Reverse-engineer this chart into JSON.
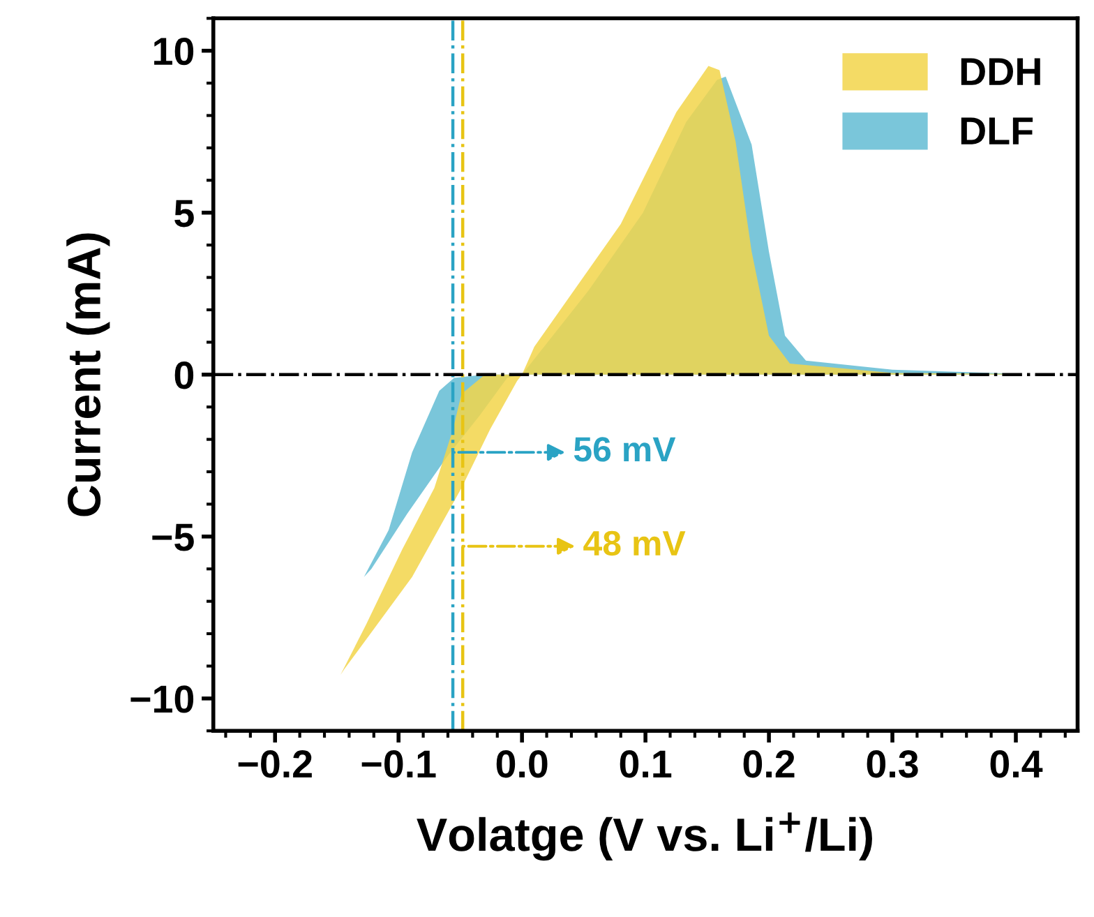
{
  "chart_data": {
    "type": "area",
    "xlabel": "Volatge (V vs. Li$^{+}$/Li)",
    "ylabel": "Current (mA)",
    "xlim": [
      -0.25,
      0.45
    ],
    "ylim": [
      -11,
      11
    ],
    "xticks": [
      {
        "value": -0.2,
        "label": "−0.2"
      },
      {
        "value": -0.1,
        "label": "−0.1"
      },
      "0.0",
      0.1,
      0.2,
      0.3,
      0.4
    ],
    "yticks": [
      {
        "value": -10,
        "label": "−10"
      },
      {
        "value": -5,
        "label": "−5"
      },
      0,
      5,
      10
    ],
    "legend": "top right",
    "grid": false,
    "series": [
      {
        "name": "DLF",
        "color": "#63bcd4",
        "x": [
          -0.128,
          -0.108,
          -0.089,
          -0.067,
          -0.055,
          -0.03,
          0.0,
          0.054,
          0.098,
          0.133,
          0.158,
          0.165,
          0.186,
          0.2,
          0.213,
          0.23,
          0.3,
          0.4,
          0.4,
          0.0,
          -0.012,
          -0.034,
          -0.06,
          -0.093,
          -0.122
        ],
        "values": [
          -6.25,
          -4.8,
          -2.4,
          -0.5,
          -0.1,
          0.0,
          0.0,
          2.6,
          5.0,
          7.8,
          9.1,
          9.2,
          7.1,
          3.8,
          1.2,
          0.43,
          0.15,
          0.03,
          0.0,
          0.0,
          -0.1,
          -1.25,
          -2.5,
          -4.3,
          -6.0
        ]
      },
      {
        "name": "DDH",
        "color": "#f2d54a",
        "x": [
          -0.147,
          -0.126,
          -0.097,
          -0.071,
          -0.056,
          -0.049,
          -0.03,
          0.0,
          0.01,
          0.08,
          0.125,
          0.151,
          0.16,
          0.173,
          0.186,
          0.2,
          0.217,
          0.3,
          0.4,
          0.4,
          0.0,
          -0.004,
          -0.026,
          -0.049,
          -0.089,
          -0.144
        ],
        "values": [
          -9.27,
          -7.7,
          -5.4,
          -3.5,
          -1.7,
          -0.6,
          0.0,
          0.0,
          0.86,
          4.65,
          8.1,
          9.53,
          9.4,
          7.2,
          3.8,
          1.2,
          0.34,
          0.05,
          0.02,
          0.0,
          0.0,
          -0.2,
          -1.7,
          -3.5,
          -6.25,
          -9.1
        ]
      }
    ],
    "ref_lines": [
      {
        "axis": "x",
        "value": -0.056,
        "color": "#2aa3c4",
        "line_style": "dashdot"
      },
      {
        "axis": "x",
        "value": -0.048,
        "color": "#e8c414",
        "line_style": "dashdot"
      },
      {
        "axis": "y",
        "value": 0,
        "color": "#000000",
        "line_style": "dashdot"
      }
    ],
    "annotations": [
      {
        "text": "56 mV",
        "x": -0.056,
        "y": -2.4
      },
      {
        "text": "48 mV",
        "x": -0.048,
        "y": -5.3
      }
    ]
  }
}
